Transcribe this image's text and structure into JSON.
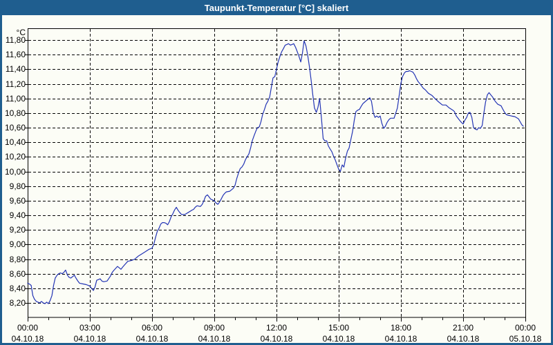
{
  "window": {
    "title": "Taupunkt-Temperatur [°C] skaliert",
    "title_bar_color": "#1f5e8f",
    "border_color": "#1f5e8f",
    "background_color": "#fcfdf6"
  },
  "chart_data": {
    "type": "line",
    "title": "Taupunkt-Temperatur [°C] skaliert",
    "ylabel": "°C",
    "xlabel": "",
    "grid": true,
    "grid_style": "dashed",
    "legend": "none",
    "line_color": "#2233b4",
    "ylim": [
      8.0,
      12.0
    ],
    "xlim_hours": [
      0,
      24
    ],
    "y_ticks": [
      {
        "value": 8.2,
        "label": "8,20"
      },
      {
        "value": 8.4,
        "label": "8,40"
      },
      {
        "value": 8.6,
        "label": "8,60"
      },
      {
        "value": 8.8,
        "label": "8,80"
      },
      {
        "value": 9.0,
        "label": "9,00"
      },
      {
        "value": 9.2,
        "label": "9,20"
      },
      {
        "value": 9.4,
        "label": "9,40"
      },
      {
        "value": 9.6,
        "label": "9,60"
      },
      {
        "value": 9.8,
        "label": "9,80"
      },
      {
        "value": 10.0,
        "label": "10,00"
      },
      {
        "value": 10.2,
        "label": "10,20"
      },
      {
        "value": 10.4,
        "label": "10,40"
      },
      {
        "value": 10.6,
        "label": "10,60"
      },
      {
        "value": 10.8,
        "label": "10,80"
      },
      {
        "value": 11.0,
        "label": "11,00"
      },
      {
        "value": 11.2,
        "label": "11,20"
      },
      {
        "value": 11.4,
        "label": "11,40"
      },
      {
        "value": 11.6,
        "label": "11,60"
      },
      {
        "value": 11.8,
        "label": "11,80"
      }
    ],
    "x_ticks": [
      {
        "hour": 0,
        "time": "00:00",
        "date": "04.10.18"
      },
      {
        "hour": 3,
        "time": "03:00",
        "date": "04.10.18"
      },
      {
        "hour": 6,
        "time": "06:00",
        "date": "04.10.18"
      },
      {
        "hour": 9,
        "time": "09:00",
        "date": "04.10.18"
      },
      {
        "hour": 12,
        "time": "12:00",
        "date": "04.10.18"
      },
      {
        "hour": 15,
        "time": "15:00",
        "date": "04.10.18"
      },
      {
        "hour": 18,
        "time": "18:00",
        "date": "04.10.18"
      },
      {
        "hour": 21,
        "time": "21:00",
        "date": "04.10.18"
      },
      {
        "hour": 24,
        "time": "00:00",
        "date": "05.10.18"
      }
    ],
    "series": [
      {
        "name": "Taupunkt-Temperatur",
        "points": [
          [
            0,
            8.47
          ],
          [
            0.08,
            8.46
          ],
          [
            0.17,
            8.44
          ],
          [
            0.25,
            8.3
          ],
          [
            0.33,
            8.25
          ],
          [
            0.42,
            8.22
          ],
          [
            0.5,
            8.21
          ],
          [
            0.58,
            8.2
          ],
          [
            0.67,
            8.22
          ],
          [
            0.75,
            8.2
          ],
          [
            0.83,
            8.19
          ],
          [
            0.92,
            8.21
          ],
          [
            1.0,
            8.19
          ],
          [
            1.08,
            8.23
          ],
          [
            1.17,
            8.3
          ],
          [
            1.25,
            8.44
          ],
          [
            1.33,
            8.54
          ],
          [
            1.42,
            8.58
          ],
          [
            1.5,
            8.6
          ],
          [
            1.58,
            8.61
          ],
          [
            1.67,
            8.6
          ],
          [
            1.75,
            8.62
          ],
          [
            1.83,
            8.65
          ],
          [
            1.92,
            8.58
          ],
          [
            2.0,
            8.55
          ],
          [
            2.08,
            8.54
          ],
          [
            2.17,
            8.56
          ],
          [
            2.25,
            8.58
          ],
          [
            2.33,
            8.54
          ],
          [
            2.42,
            8.5
          ],
          [
            2.5,
            8.47
          ],
          [
            2.67,
            8.46
          ],
          [
            2.83,
            8.45
          ],
          [
            2.92,
            8.44
          ],
          [
            3.0,
            8.43
          ],
          [
            3.08,
            8.4
          ],
          [
            3.17,
            8.37
          ],
          [
            3.25,
            8.42
          ],
          [
            3.33,
            8.51
          ],
          [
            3.5,
            8.53
          ],
          [
            3.58,
            8.5
          ],
          [
            3.67,
            8.49
          ],
          [
            3.83,
            8.5
          ],
          [
            4.0,
            8.57
          ],
          [
            4.08,
            8.62
          ],
          [
            4.17,
            8.65
          ],
          [
            4.33,
            8.7
          ],
          [
            4.42,
            8.68
          ],
          [
            4.5,
            8.66
          ],
          [
            4.58,
            8.69
          ],
          [
            4.67,
            8.72
          ],
          [
            4.83,
            8.77
          ],
          [
            5.0,
            8.78
          ],
          [
            5.17,
            8.8
          ],
          [
            5.33,
            8.84
          ],
          [
            5.5,
            8.87
          ],
          [
            5.67,
            8.9
          ],
          [
            5.83,
            8.93
          ],
          [
            6.0,
            8.95
          ],
          [
            6.08,
            9.0
          ],
          [
            6.17,
            9.1
          ],
          [
            6.25,
            9.18
          ],
          [
            6.33,
            9.22
          ],
          [
            6.42,
            9.28
          ],
          [
            6.5,
            9.3
          ],
          [
            6.58,
            9.3
          ],
          [
            6.67,
            9.29
          ],
          [
            6.75,
            9.27
          ],
          [
            6.83,
            9.31
          ],
          [
            6.92,
            9.38
          ],
          [
            7.0,
            9.42
          ],
          [
            7.08,
            9.47
          ],
          [
            7.17,
            9.51
          ],
          [
            7.25,
            9.47
          ],
          [
            7.33,
            9.44
          ],
          [
            7.42,
            9.41
          ],
          [
            7.58,
            9.41
          ],
          [
            7.75,
            9.44
          ],
          [
            7.92,
            9.47
          ],
          [
            8.0,
            9.48
          ],
          [
            8.08,
            9.51
          ],
          [
            8.17,
            9.53
          ],
          [
            8.33,
            9.52
          ],
          [
            8.42,
            9.55
          ],
          [
            8.5,
            9.6
          ],
          [
            8.58,
            9.66
          ],
          [
            8.67,
            9.68
          ],
          [
            8.75,
            9.65
          ],
          [
            8.83,
            9.62
          ],
          [
            9.0,
            9.6
          ],
          [
            9.08,
            9.57
          ],
          [
            9.17,
            9.55
          ],
          [
            9.25,
            9.58
          ],
          [
            9.33,
            9.62
          ],
          [
            9.42,
            9.67
          ],
          [
            9.5,
            9.7
          ],
          [
            9.58,
            9.72
          ],
          [
            9.75,
            9.73
          ],
          [
            9.92,
            9.77
          ],
          [
            10.0,
            9.81
          ],
          [
            10.08,
            9.9
          ],
          [
            10.17,
            9.98
          ],
          [
            10.25,
            10.04
          ],
          [
            10.33,
            10.06
          ],
          [
            10.42,
            10.1
          ],
          [
            10.5,
            10.16
          ],
          [
            10.58,
            10.2
          ],
          [
            10.67,
            10.24
          ],
          [
            10.75,
            10.32
          ],
          [
            10.83,
            10.42
          ],
          [
            10.92,
            10.49
          ],
          [
            11.0,
            10.55
          ],
          [
            11.08,
            10.6
          ],
          [
            11.17,
            10.61
          ],
          [
            11.25,
            10.68
          ],
          [
            11.33,
            10.78
          ],
          [
            11.42,
            10.85
          ],
          [
            11.5,
            10.92
          ],
          [
            11.58,
            10.96
          ],
          [
            11.67,
            11.02
          ],
          [
            11.75,
            11.15
          ],
          [
            11.83,
            11.28
          ],
          [
            11.92,
            11.3
          ],
          [
            12.0,
            11.4
          ],
          [
            12.08,
            11.5
          ],
          [
            12.17,
            11.58
          ],
          [
            12.25,
            11.64
          ],
          [
            12.33,
            11.68
          ],
          [
            12.42,
            11.73
          ],
          [
            12.5,
            11.74
          ],
          [
            12.58,
            11.75
          ],
          [
            12.67,
            11.73
          ],
          [
            12.75,
            11.74
          ],
          [
            12.83,
            11.75
          ],
          [
            12.92,
            11.7
          ],
          [
            13.0,
            11.64
          ],
          [
            13.08,
            11.58
          ],
          [
            13.17,
            11.5
          ],
          [
            13.25,
            11.62
          ],
          [
            13.33,
            11.79
          ],
          [
            13.42,
            11.72
          ],
          [
            13.5,
            11.6
          ],
          [
            13.58,
            11.45
          ],
          [
            13.67,
            11.25
          ],
          [
            13.75,
            11.05
          ],
          [
            13.83,
            10.87
          ],
          [
            13.92,
            10.81
          ],
          [
            14.0,
            10.88
          ],
          [
            14.08,
            11.0
          ],
          [
            14.17,
            10.72
          ],
          [
            14.25,
            10.45
          ],
          [
            14.33,
            10.42
          ],
          [
            14.42,
            10.42
          ],
          [
            14.5,
            10.35
          ],
          [
            14.58,
            10.31
          ],
          [
            14.67,
            10.27
          ],
          [
            14.75,
            10.21
          ],
          [
            14.83,
            10.16
          ],
          [
            14.92,
            10.09
          ],
          [
            15.0,
            10.03
          ],
          [
            15.08,
            10.0
          ],
          [
            15.17,
            10.09
          ],
          [
            15.25,
            10.06
          ],
          [
            15.33,
            10.18
          ],
          [
            15.42,
            10.28
          ],
          [
            15.5,
            10.32
          ],
          [
            15.58,
            10.43
          ],
          [
            15.67,
            10.55
          ],
          [
            15.75,
            10.7
          ],
          [
            15.83,
            10.82
          ],
          [
            15.92,
            10.84
          ],
          [
            16.0,
            10.85
          ],
          [
            16.08,
            10.89
          ],
          [
            16.17,
            10.93
          ],
          [
            16.25,
            10.95
          ],
          [
            16.33,
            10.97
          ],
          [
            16.42,
            10.99
          ],
          [
            16.5,
            11.01
          ],
          [
            16.58,
            10.96
          ],
          [
            16.67,
            10.8
          ],
          [
            16.75,
            10.74
          ],
          [
            16.83,
            10.76
          ],
          [
            16.92,
            10.74
          ],
          [
            17.0,
            10.76
          ],
          [
            17.08,
            10.66
          ],
          [
            17.17,
            10.59
          ],
          [
            17.25,
            10.62
          ],
          [
            17.33,
            10.67
          ],
          [
            17.42,
            10.71
          ],
          [
            17.5,
            10.73
          ],
          [
            17.67,
            10.73
          ],
          [
            17.83,
            10.87
          ],
          [
            17.92,
            11.05
          ],
          [
            18.0,
            11.21
          ],
          [
            18.08,
            11.3
          ],
          [
            18.17,
            11.35
          ],
          [
            18.25,
            11.37
          ],
          [
            18.33,
            11.37
          ],
          [
            18.42,
            11.38
          ],
          [
            18.5,
            11.37
          ],
          [
            18.58,
            11.36
          ],
          [
            18.67,
            11.32
          ],
          [
            18.75,
            11.27
          ],
          [
            18.83,
            11.23
          ],
          [
            18.92,
            11.2
          ],
          [
            19.0,
            11.17
          ],
          [
            19.08,
            11.14
          ],
          [
            19.17,
            11.12
          ],
          [
            19.33,
            11.07
          ],
          [
            19.5,
            11.04
          ],
          [
            19.67,
            10.99
          ],
          [
            19.83,
            10.95
          ],
          [
            20.0,
            10.91
          ],
          [
            20.17,
            10.91
          ],
          [
            20.33,
            10.87
          ],
          [
            20.5,
            10.84
          ],
          [
            20.58,
            10.82
          ],
          [
            20.67,
            10.76
          ],
          [
            20.83,
            10.7
          ],
          [
            20.92,
            10.67
          ],
          [
            21.0,
            10.65
          ],
          [
            21.08,
            10.7
          ],
          [
            21.17,
            10.74
          ],
          [
            21.25,
            10.8
          ],
          [
            21.33,
            10.81
          ],
          [
            21.42,
            10.74
          ],
          [
            21.5,
            10.6
          ],
          [
            21.58,
            10.58
          ],
          [
            21.67,
            10.57
          ],
          [
            21.75,
            10.6
          ],
          [
            21.83,
            10.59
          ],
          [
            21.92,
            10.63
          ],
          [
            22.0,
            10.8
          ],
          [
            22.08,
            10.95
          ],
          [
            22.17,
            11.05
          ],
          [
            22.25,
            11.08
          ],
          [
            22.33,
            11.05
          ],
          [
            22.42,
            11.02
          ],
          [
            22.5,
            10.98
          ],
          [
            22.58,
            10.95
          ],
          [
            22.67,
            10.92
          ],
          [
            22.75,
            10.91
          ],
          [
            22.83,
            10.9
          ],
          [
            22.92,
            10.85
          ],
          [
            23.0,
            10.81
          ],
          [
            23.08,
            10.78
          ],
          [
            23.17,
            10.77
          ],
          [
            23.33,
            10.76
          ],
          [
            23.5,
            10.75
          ],
          [
            23.67,
            10.72
          ],
          [
            23.75,
            10.68
          ],
          [
            23.83,
            10.64
          ],
          [
            23.9,
            10.62
          ]
        ]
      }
    ]
  }
}
